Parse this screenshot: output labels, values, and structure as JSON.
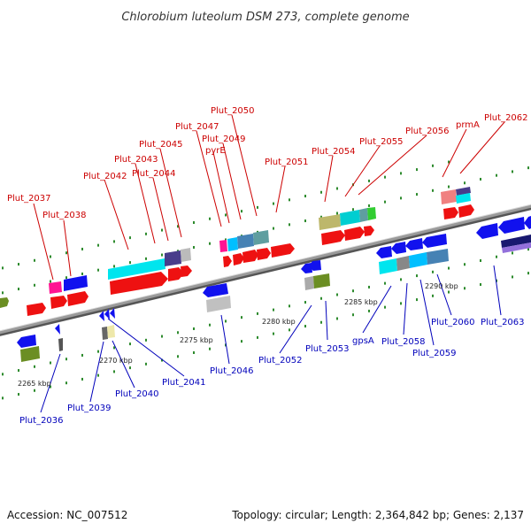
{
  "title": "Chlorobium luteolum DSM 273, complete genome",
  "footer": {
    "accession": "Accession: NC_007512",
    "summary": "Topology: circular; Length: 2,364,842 bp; Genes: 2,137"
  },
  "colors": {
    "forward_label": "#cc0000",
    "reverse_label": "#0000bb",
    "backbone": "#888888",
    "tick_mark": "#2e8b2e"
  },
  "scale_labels": [
    "2265 kbp",
    "2270 kbp",
    "2275 kbp",
    "2280 kbp",
    "2285 kbp",
    "2290 kbp"
  ],
  "forward_genes": [
    {
      "id": "Plut_2037",
      "label": "Plut_2037"
    },
    {
      "id": "Plut_2038",
      "label": "Plut_2038"
    },
    {
      "id": "Plut_2042",
      "label": "Plut_2042"
    },
    {
      "id": "Plut_2043",
      "label": "Plut_2043"
    },
    {
      "id": "Plut_2044",
      "label": "Plut_2044"
    },
    {
      "id": "Plut_2045",
      "label": "Plut_2045"
    },
    {
      "id": "Plut_2047",
      "label": "Plut_2047"
    },
    {
      "id": "pyrE",
      "label": "pyrE"
    },
    {
      "id": "Plut_2049",
      "label": "Plut_2049"
    },
    {
      "id": "Plut_2050",
      "label": "Plut_2050"
    },
    {
      "id": "Plut_2051",
      "label": "Plut_2051"
    },
    {
      "id": "Plut_2054",
      "label": "Plut_2054"
    },
    {
      "id": "Plut_2055",
      "label": "Plut_2055"
    },
    {
      "id": "Plut_2056",
      "label": "Plut_2056"
    },
    {
      "id": "prmA",
      "label": "prmA"
    },
    {
      "id": "Plut_2062",
      "label": "Plut_2062"
    }
  ],
  "reverse_genes": [
    {
      "id": "Plut_2036",
      "label": "Plut_2036"
    },
    {
      "id": "Plut_2039",
      "label": "Plut_2039"
    },
    {
      "id": "Plut_2040",
      "label": "Plut_2040"
    },
    {
      "id": "Plut_2041",
      "label": "Plut_2041"
    },
    {
      "id": "Plut_2046",
      "label": "Plut_2046"
    },
    {
      "id": "Plut_2052",
      "label": "Plut_2052"
    },
    {
      "id": "Plut_2053",
      "label": "Plut_2053"
    },
    {
      "id": "gpsA",
      "label": "gpsA"
    },
    {
      "id": "Plut_2058",
      "label": "Plut_2058"
    },
    {
      "id": "Plut_2059",
      "label": "Plut_2059"
    },
    {
      "id": "Plut_2060",
      "label": "Plut_2060"
    },
    {
      "id": "Plut_2063",
      "label": "Plut_2063"
    }
  ]
}
